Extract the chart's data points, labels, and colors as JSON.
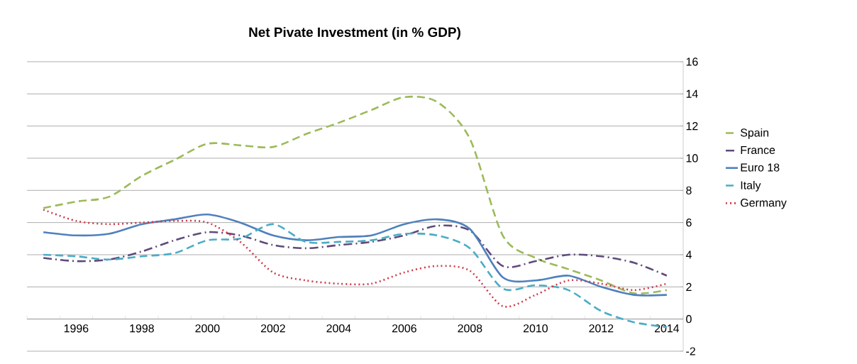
{
  "chart_data": {
    "type": "line",
    "title": "Net  Pivate Investment (in % GDP)",
    "categories": [
      null,
      "1996",
      null,
      "1998",
      null,
      "2000",
      null,
      "2002",
      null,
      "2004",
      null,
      "2006",
      null,
      "2008",
      null,
      "2010",
      null,
      "2012",
      null,
      "2014"
    ],
    "series": [
      {
        "name": "Spain",
        "color": "#9bbb59",
        "line_style": "dashed",
        "values": [
          6.9,
          7.3,
          7.6,
          8.9,
          9.9,
          10.9,
          10.8,
          10.7,
          11.5,
          12.2,
          13.0,
          13.8,
          13.5,
          11.2,
          5.2,
          3.8,
          3.1,
          2.4,
          1.6,
          1.8
        ]
      },
      {
        "name": "France",
        "color": "#604a7b",
        "line_style": "dashdot",
        "values": [
          3.8,
          3.6,
          3.7,
          4.2,
          4.9,
          5.4,
          5.2,
          4.6,
          4.4,
          4.6,
          4.8,
          5.2,
          5.8,
          5.5,
          3.3,
          3.6,
          4.0,
          3.9,
          3.5,
          2.7
        ]
      },
      {
        "name": "Euro 18",
        "color": "#4f81bd",
        "line_style": "solid",
        "values": [
          5.4,
          5.2,
          5.3,
          5.9,
          6.2,
          6.5,
          6.0,
          5.2,
          4.9,
          5.1,
          5.2,
          5.9,
          6.2,
          5.6,
          2.6,
          2.4,
          2.7,
          2.0,
          1.5,
          1.5
        ]
      },
      {
        "name": "Italy",
        "color": "#4bacc6",
        "line_style": "dashed",
        "values": [
          4.0,
          3.9,
          3.7,
          3.9,
          4.1,
          4.9,
          5.0,
          5.9,
          4.8,
          4.8,
          4.9,
          5.3,
          5.2,
          4.4,
          1.9,
          2.1,
          1.8,
          0.5,
          -0.2,
          -0.5
        ]
      },
      {
        "name": "Germany",
        "color": "#d03a4a",
        "line_style": "dotted",
        "values": [
          6.8,
          6.1,
          5.9,
          6.0,
          6.1,
          6.0,
          4.8,
          2.9,
          2.4,
          2.2,
          2.2,
          2.9,
          3.3,
          3.0,
          0.8,
          1.5,
          2.4,
          2.2,
          1.8,
          2.2
        ]
      }
    ],
    "ylim": [
      -2,
      16
    ],
    "yticks": [
      -2,
      0,
      2,
      4,
      6,
      8,
      10,
      12,
      14,
      16
    ],
    "grid": "y",
    "legend": "right"
  }
}
